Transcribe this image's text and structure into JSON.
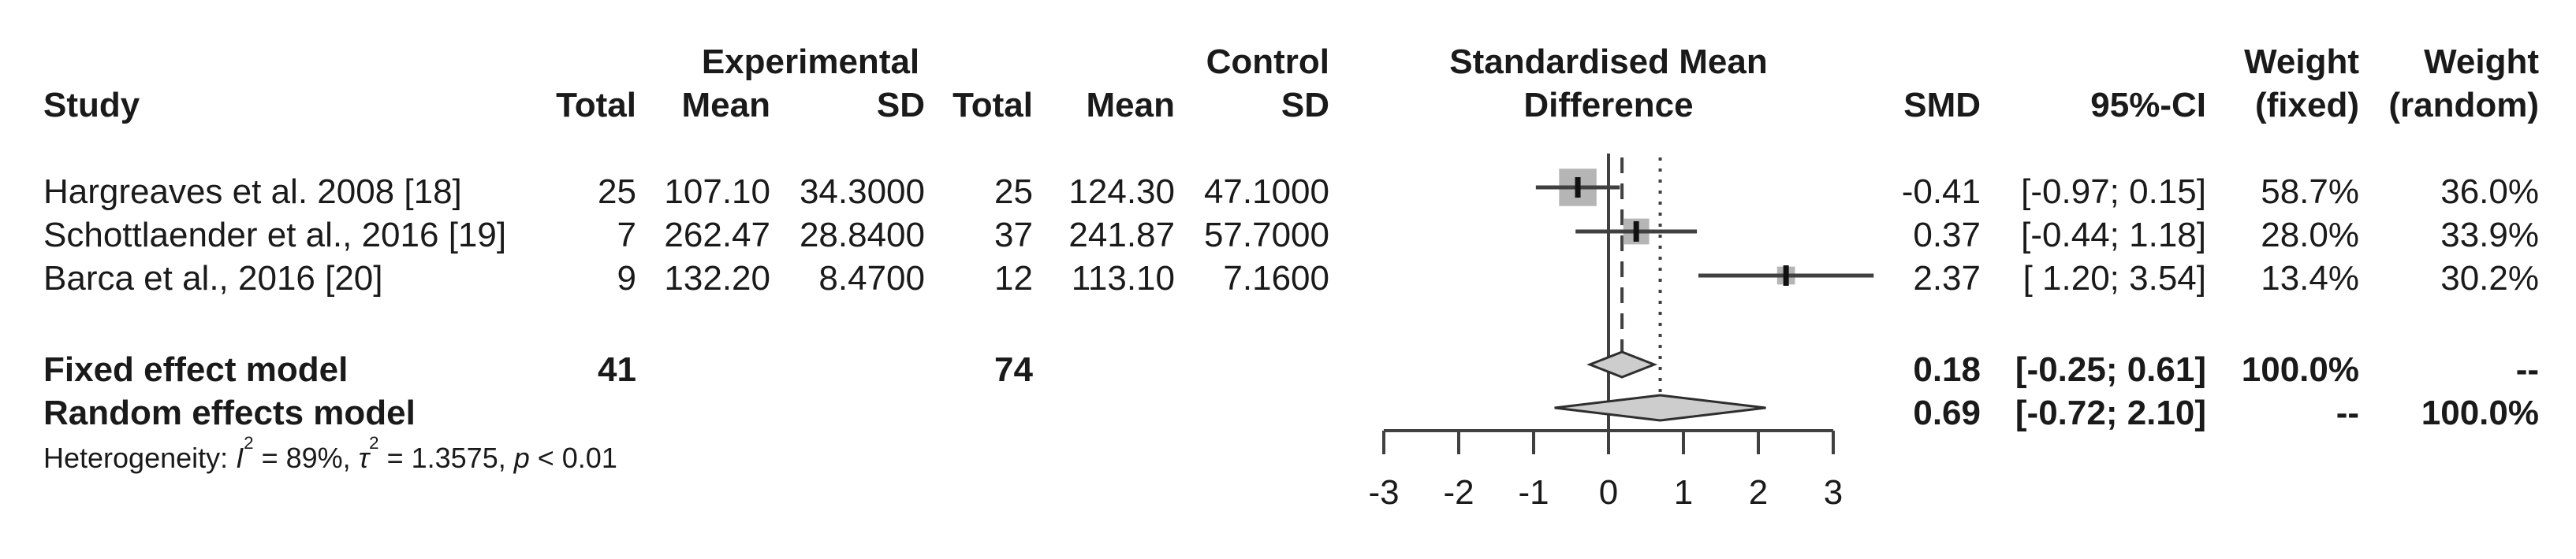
{
  "header": {
    "study": "Study",
    "experimental": "Experimental",
    "control": "Control",
    "total": "Total",
    "mean": "Mean",
    "sd": "SD",
    "plot_title_line1": "Standardised Mean",
    "plot_title_line2": "Difference",
    "smd": "SMD",
    "ci": "95%-CI",
    "weight": "Weight",
    "weight_fixed_sub": "(fixed)",
    "weight_random_sub": "(random)"
  },
  "studies": [
    {
      "name": "Hargreaves et al. 2008 [18]",
      "total_e": "25",
      "mean_e": "107.10",
      "sd_e": "34.3000",
      "total_c": "25",
      "mean_c": "124.30",
      "sd_c": "47.1000",
      "smd": "-0.41",
      "ci": "[-0.97; 0.15]",
      "w_fixed": "58.7%",
      "w_random": "36.0%"
    },
    {
      "name": "Schottlaender et al., 2016 [19]",
      "total_e": "7",
      "mean_e": "262.47",
      "sd_e": "28.8400",
      "total_c": "37",
      "mean_c": "241.87",
      "sd_c": "57.7000",
      "smd": "0.37",
      "ci": "[-0.44; 1.18]",
      "w_fixed": "28.0%",
      "w_random": "33.9%"
    },
    {
      "name": "Barca et al., 2016 [20]",
      "total_e": "9",
      "mean_e": "132.20",
      "sd_e": "8.4700",
      "total_c": "12",
      "mean_c": "113.10",
      "sd_c": "7.1600",
      "smd": "2.37",
      "ci": "[ 1.20; 3.54]",
      "w_fixed": "13.4%",
      "w_random": "30.2%"
    }
  ],
  "fixed_row": {
    "name": "Fixed effect model",
    "total_e": "41",
    "total_c": "74",
    "smd": "0.18",
    "ci": "[-0.25; 0.61]",
    "w_fixed": "100.0%",
    "w_random": "--"
  },
  "random_row": {
    "name": "Random effects model",
    "smd": "0.69",
    "ci": "[-0.72; 2.10]",
    "w_fixed": "--",
    "w_random": "100.0%"
  },
  "heterogeneity": {
    "prefix": "Heterogeneity: ",
    "i_sym": "I",
    "sup2a": "2",
    "part1": " = 89%, ",
    "tau_sym": "τ",
    "sup2b": "2",
    "part2": " = 1.3575, ",
    "p_sym": "p",
    "part3": " < 0.01"
  },
  "chart_data": {
    "type": "forest",
    "title": "Standardised Mean Difference",
    "x_axis": {
      "min": -3,
      "max": 3,
      "ticks": [
        -3,
        -2,
        -1,
        0,
        1,
        2,
        3
      ]
    },
    "reference_line": 0,
    "fixed_effect_line": 0.18,
    "random_effect_line": 0.69,
    "studies": [
      {
        "label": "Hargreaves et al. 2008 [18]",
        "smd": -0.41,
        "ci_low": -0.97,
        "ci_high": 0.15,
        "weight_fixed": 58.7,
        "weight_random": 36.0
      },
      {
        "label": "Schottlaender et al., 2016 [19]",
        "smd": 0.37,
        "ci_low": -0.44,
        "ci_high": 1.18,
        "weight_fixed": 28.0,
        "weight_random": 33.9
      },
      {
        "label": "Barca et al., 2016 [20]",
        "smd": 2.37,
        "ci_low": 1.2,
        "ci_high": 3.54,
        "weight_fixed": 13.4,
        "weight_random": 30.2
      }
    ],
    "fixed": {
      "label": "Fixed effect model",
      "smd": 0.18,
      "ci_low": -0.25,
      "ci_high": 0.61
    },
    "random": {
      "label": "Random effects model",
      "smd": 0.69,
      "ci_low": -0.72,
      "ci_high": 2.1
    },
    "heterogeneity": {
      "I2": "89%",
      "tau2": 1.3575,
      "p": "< 0.01"
    }
  },
  "colors": {
    "text": "#1a1a1a",
    "square_fill": "#b5b5b5",
    "diamond_fill": "#cdcdcd",
    "line": "#404040"
  }
}
